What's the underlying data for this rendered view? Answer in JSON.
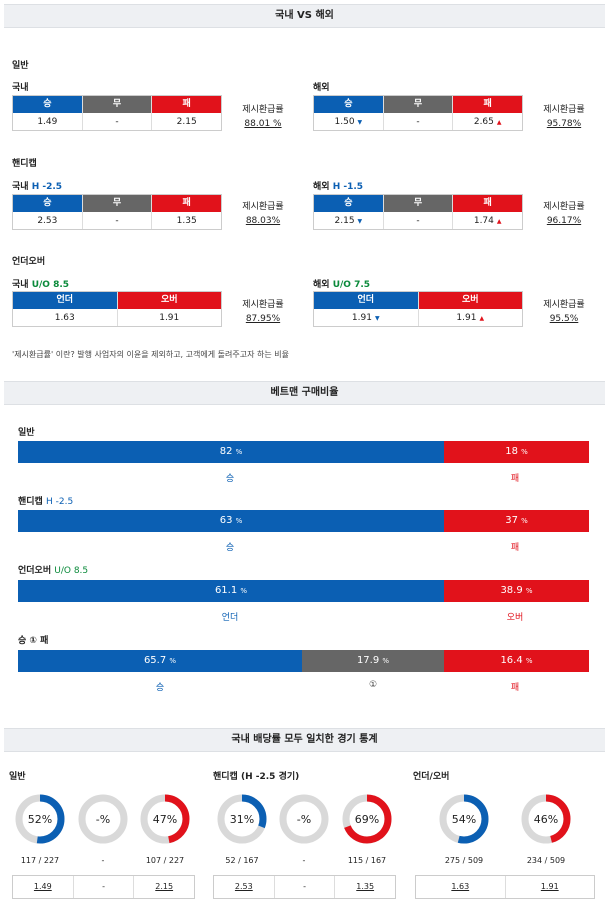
{
  "section1": {
    "title": "국내 VS 해외",
    "general": {
      "label": "일반",
      "domestic": {
        "label": "국내",
        "heads": [
          "승",
          "무",
          "패"
        ],
        "values": [
          "1.49",
          "-",
          "2.15"
        ],
        "ratio_label": "제시환급률",
        "ratio": "88.01 %"
      },
      "overseas": {
        "label": "해외",
        "heads": [
          "승",
          "무",
          "패"
        ],
        "values": [
          "1.50",
          "-",
          "2.65"
        ],
        "ratio_label": "제시환급률",
        "ratio": "95.78%"
      }
    },
    "handicap": {
      "label": "핸디캡",
      "domestic": {
        "label": "국내",
        "line": "H -2.5",
        "heads": [
          "승",
          "무",
          "패"
        ],
        "values": [
          "2.53",
          "-",
          "1.35"
        ],
        "ratio_label": "제시환급률",
        "ratio": "88.03%"
      },
      "overseas": {
        "label": "해외",
        "line": "H -1.5",
        "heads": [
          "승",
          "무",
          "패"
        ],
        "values": [
          "2.15",
          "-",
          "1.74"
        ],
        "ratio_label": "제시환급률",
        "ratio": "96.17%"
      }
    },
    "underover": {
      "label": "언더오버",
      "domestic": {
        "label": "국내",
        "line": "U/O 8.5",
        "heads": [
          "언더",
          "오버"
        ],
        "values": [
          "1.63",
          "1.91"
        ],
        "ratio_label": "제시환급률",
        "ratio": "87.95%"
      },
      "overseas": {
        "label": "해외",
        "line": "U/O 7.5",
        "heads": [
          "언더",
          "오버"
        ],
        "values": [
          "1.91",
          "1.91"
        ],
        "ratio_label": "제시환급률",
        "ratio": "95.5%"
      }
    },
    "note": "'제시환급률' 이란? 발행 사업자의 이윤을 제외하고, 고객에게 돌려주고자 하는 비율"
  },
  "section2": {
    "title": "베트맨 구매비율",
    "general": {
      "label": "일반",
      "segments": [
        {
          "pct": "82",
          "label": "승"
        },
        {
          "pct": "18",
          "label": "패"
        }
      ]
    },
    "handicap": {
      "label": "핸디캡",
      "line": "H -2.5",
      "segments": [
        {
          "pct": "63",
          "label": "승"
        },
        {
          "pct": "37",
          "label": "패"
        }
      ]
    },
    "underover": {
      "label": "언더오버",
      "line": "U/O 8.5",
      "segments": [
        {
          "pct": "61.1",
          "label": "언더"
        },
        {
          "pct": "38.9",
          "label": "오버"
        }
      ]
    },
    "winloss": {
      "label": "승 ① 패",
      "segments": [
        {
          "pct": "65.7",
          "label": "승"
        },
        {
          "pct": "17.9",
          "label": "①"
        },
        {
          "pct": "16.4",
          "label": "패"
        }
      ]
    },
    "unit": "%"
  },
  "section3": {
    "title": "국내 배당률 모두 일치한 경기 통계",
    "general": {
      "label": "일반",
      "donuts": [
        {
          "text": "52%",
          "pct": 52,
          "color": "#0b5fb3",
          "count": "117 / 227"
        },
        {
          "text": "-%",
          "pct": 0,
          "color": "#666",
          "count": "-"
        },
        {
          "text": "47%",
          "pct": 47,
          "color": "#e1121b",
          "count": "107 / 227"
        }
      ],
      "values": [
        "1.49",
        "-",
        "2.15"
      ]
    },
    "handicap": {
      "label": "핸디캡 (H -2.5 경기)",
      "donuts": [
        {
          "text": "31%",
          "pct": 31,
          "color": "#0b5fb3",
          "count": "52 / 167"
        },
        {
          "text": "-%",
          "pct": 0,
          "color": "#666",
          "count": "-"
        },
        {
          "text": "69%",
          "pct": 69,
          "color": "#e1121b",
          "count": "115 / 167"
        }
      ],
      "values": [
        "2.53",
        "-",
        "1.35"
      ]
    },
    "underover": {
      "label": "언더/오버",
      "donuts": [
        {
          "text": "54%",
          "pct": 54,
          "color": "#0b5fb3",
          "count": "275 / 509"
        },
        {
          "text": "46%",
          "pct": 46,
          "color": "#e1121b",
          "count": "234 / 509"
        }
      ],
      "values": [
        "1.63",
        "1.91"
      ]
    }
  }
}
